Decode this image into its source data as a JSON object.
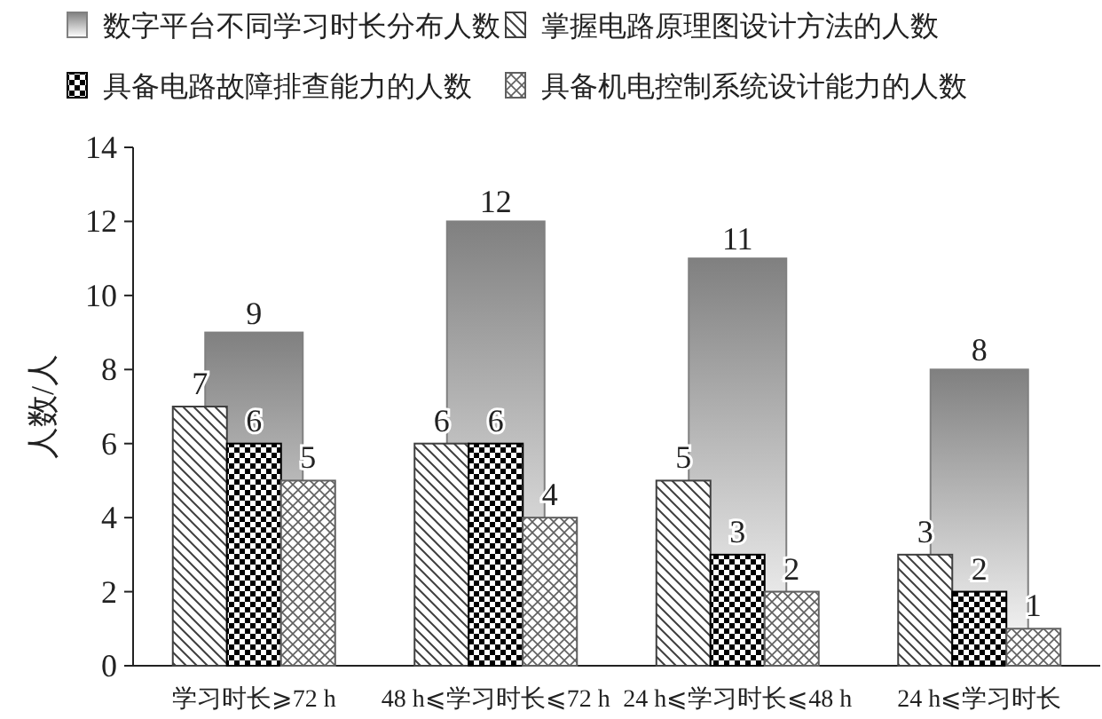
{
  "chart_data": {
    "type": "bar",
    "categories": [
      "学习时长⩾72 h",
      "48 h⩽学习时长⩽72 h",
      "24 h⩽学习时长⩽48 h",
      "24 h⩽学习时长"
    ],
    "series": [
      {
        "name": "数字平台不同学习时长分布人数",
        "color": "#808080",
        "values": [
          9,
          12,
          11,
          8
        ]
      },
      {
        "name": "掌握电路原理图设计方法的人数",
        "color": "#404040",
        "values": [
          7,
          6,
          5,
          3
        ]
      },
      {
        "name": "具备电路故障排查能力的人数",
        "color": "#000000",
        "values": [
          6,
          6,
          3,
          2
        ]
      },
      {
        "name": "具备机电控制系统设计能力的人数",
        "color": "#606060",
        "values": [
          5,
          4,
          2,
          1
        ]
      }
    ],
    "ylabel": "人数/人",
    "ylim": [
      0,
      14
    ],
    "yticks": [
      0,
      2,
      4,
      6,
      8,
      10,
      12,
      14
    ],
    "data_labels": true,
    "legend": "top",
    "grid": false
  }
}
